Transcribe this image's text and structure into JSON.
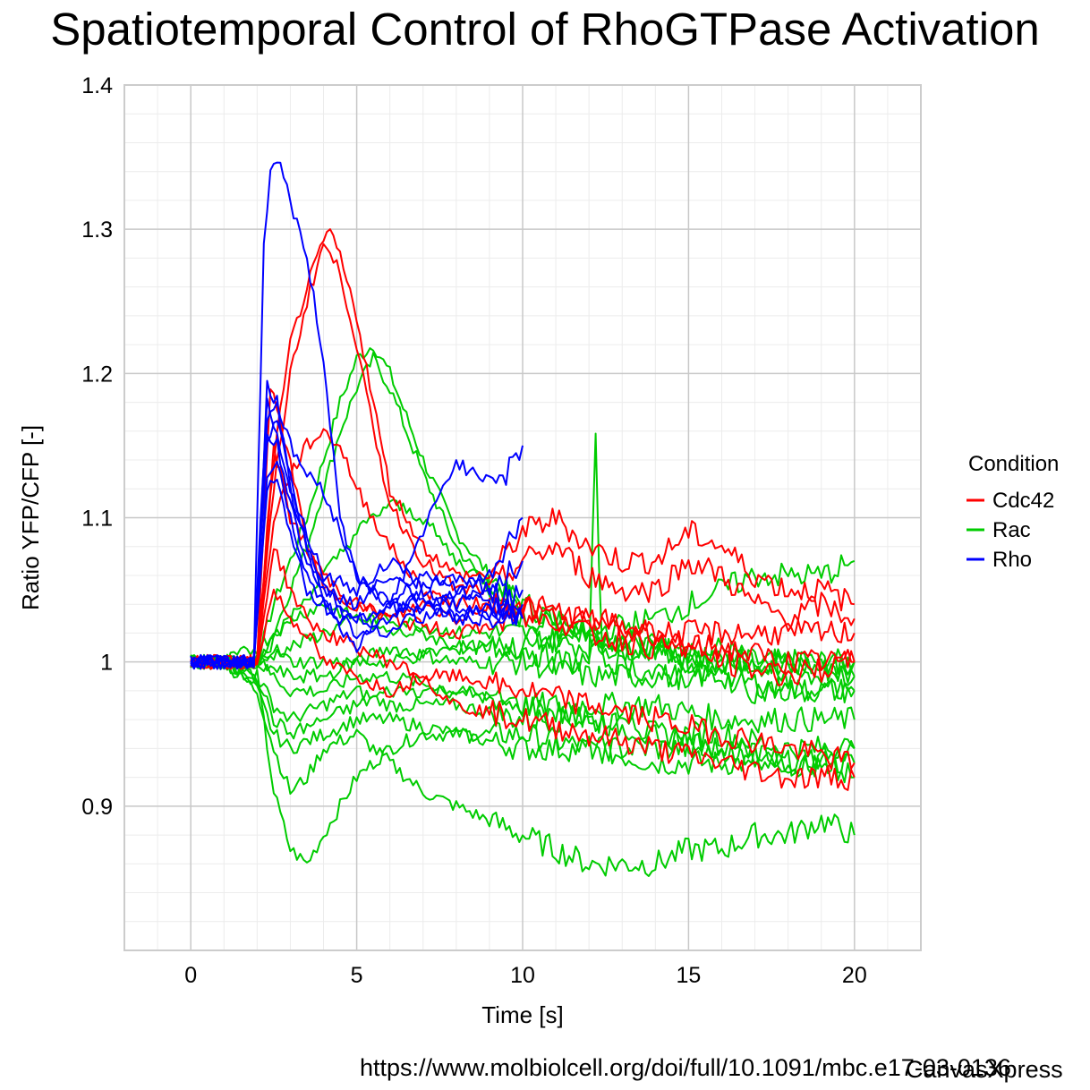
{
  "chart_data": {
    "type": "line",
    "title": "Spatiotemporal Control of RhoGTPase Activation",
    "xlabel": "Time [s]",
    "ylabel": "Ratio YFP/CFP [-]",
    "xlim": [
      -2,
      22
    ],
    "ylim": [
      0.8,
      1.4
    ],
    "x_ticks": [
      0,
      5,
      10,
      15,
      20
    ],
    "x_tick_labels": [
      "0",
      "5",
      "10",
      "15",
      "20"
    ],
    "y_ticks": [
      0.9,
      1.0,
      1.1,
      1.2,
      1.3,
      1.4
    ],
    "y_tick_labels": [
      "0.9",
      "1",
      "1.1",
      "1.2",
      "1.3",
      "1.4"
    ],
    "grid": true,
    "legend": {
      "title": "Condition",
      "placement": "right",
      "entries": [
        {
          "label": "Cdc42",
          "color": "#ff0000"
        },
        {
          "label": "Rac",
          "color": "#00cc00"
        },
        {
          "label": "Rho",
          "color": "#0000ff"
        }
      ]
    },
    "series": [
      {
        "group": "Rho",
        "color": "#0000ff",
        "x": [
          0,
          1,
          1.9,
          2.2,
          2.4,
          2.6,
          3,
          3.5,
          4,
          4.5,
          5,
          5.5,
          6,
          7,
          8,
          9,
          10
        ],
        "y": [
          1.0,
          1.0,
          1.0,
          1.29,
          1.34,
          1.35,
          1.32,
          1.28,
          1.21,
          1.1,
          1.06,
          1.05,
          1.04,
          1.04,
          1.03,
          1.04,
          1.03
        ]
      },
      {
        "group": "Rho",
        "color": "#0000ff",
        "x": [
          0,
          1,
          1.9,
          2.3,
          2.6,
          3,
          3.5,
          4,
          5,
          6,
          7,
          8,
          8.5,
          9,
          9.5,
          10
        ],
        "y": [
          1.0,
          1.0,
          1.0,
          1.17,
          1.18,
          1.15,
          1.13,
          1.12,
          1.06,
          1.04,
          1.09,
          1.14,
          1.13,
          1.13,
          1.13,
          1.15
        ]
      },
      {
        "group": "Rho",
        "color": "#0000ff",
        "x": [
          0,
          1,
          1.9,
          2.3,
          2.6,
          3,
          3.5,
          4,
          5,
          6,
          7,
          8,
          9,
          10
        ],
        "y": [
          1.0,
          1.0,
          1.0,
          1.19,
          1.18,
          1.12,
          1.08,
          1.05,
          1.03,
          1.04,
          1.06,
          1.05,
          1.06,
          1.1
        ]
      },
      {
        "group": "Rho",
        "color": "#0000ff",
        "x": [
          0,
          1,
          1.9,
          2.3,
          2.6,
          3,
          3.5,
          4,
          5,
          6,
          7,
          8,
          9,
          10
        ],
        "y": [
          1.0,
          1.0,
          1.0,
          1.15,
          1.17,
          1.13,
          1.08,
          1.04,
          1.02,
          1.03,
          1.05,
          1.04,
          1.03,
          1.05
        ]
      },
      {
        "group": "Rho",
        "color": "#0000ff",
        "x": [
          0,
          1,
          1.9,
          2.3,
          2.6,
          3,
          3.5,
          4,
          5,
          6,
          7,
          8,
          9,
          10
        ],
        "y": [
          1.0,
          1.0,
          1.0,
          1.13,
          1.14,
          1.1,
          1.06,
          1.04,
          1.01,
          1.04,
          1.03,
          1.05,
          1.04,
          1.03
        ]
      },
      {
        "group": "Rho",
        "color": "#0000ff",
        "x": [
          0,
          1,
          1.9,
          2.3,
          2.6,
          3,
          3.5,
          4,
          5,
          6,
          7,
          8,
          9,
          10
        ],
        "y": [
          1.0,
          1.0,
          1.0,
          1.16,
          1.15,
          1.11,
          1.07,
          1.05,
          1.04,
          1.06,
          1.04,
          1.04,
          1.05,
          1.04
        ]
      },
      {
        "group": "Rho",
        "color": "#0000ff",
        "x": [
          0,
          1,
          1.9,
          2.3,
          2.6,
          3,
          3.5,
          4,
          5,
          6,
          7,
          8,
          9,
          10
        ],
        "y": [
          1.0,
          1.0,
          1.0,
          1.12,
          1.13,
          1.09,
          1.05,
          1.04,
          1.03,
          1.02,
          1.04,
          1.03,
          1.03,
          1.03
        ]
      },
      {
        "group": "Rho",
        "color": "#0000ff",
        "x": [
          0,
          1,
          1.9,
          2.3,
          2.6,
          3,
          3.5,
          4,
          5,
          6,
          7,
          8,
          9,
          10
        ],
        "y": [
          1.0,
          1.0,
          1.0,
          1.18,
          1.16,
          1.12,
          1.09,
          1.06,
          1.05,
          1.07,
          1.05,
          1.06,
          1.05,
          1.07
        ]
      },
      {
        "group": "Cdc42",
        "color": "#ff0000",
        "x": [
          0,
          1,
          2,
          2.5,
          3,
          3.5,
          4,
          4.2,
          4.5,
          5,
          5.5,
          6,
          7,
          8,
          9,
          10,
          11,
          12,
          13,
          14,
          15,
          16,
          17,
          18,
          19,
          20
        ],
        "y": [
          1.0,
          1.0,
          1.0,
          1.14,
          1.22,
          1.26,
          1.29,
          1.3,
          1.28,
          1.24,
          1.18,
          1.12,
          1.08,
          1.06,
          1.06,
          1.09,
          1.1,
          1.08,
          1.07,
          1.07,
          1.09,
          1.08,
          1.06,
          1.05,
          1.05,
          1.04
        ]
      },
      {
        "group": "Cdc42",
        "color": "#ff0000",
        "x": [
          0,
          1,
          2,
          2.5,
          3,
          3.5,
          4,
          4.5,
          5,
          5.5,
          6,
          7,
          8,
          9,
          10,
          11,
          12,
          13,
          14,
          15,
          16,
          17,
          18,
          19,
          20
        ],
        "y": [
          1.0,
          1.0,
          1.0,
          1.12,
          1.2,
          1.25,
          1.29,
          1.27,
          1.22,
          1.16,
          1.11,
          1.07,
          1.05,
          1.05,
          1.07,
          1.08,
          1.06,
          1.05,
          1.05,
          1.07,
          1.06,
          1.04,
          1.03,
          1.04,
          1.03
        ]
      },
      {
        "group": "Cdc42",
        "color": "#ff0000",
        "x": [
          0,
          1,
          2,
          2.5,
          3,
          3.5,
          4,
          4.5,
          5,
          6,
          7,
          8,
          9,
          10,
          12,
          14,
          16,
          18,
          20
        ],
        "y": [
          1.0,
          1.0,
          1.0,
          1.1,
          1.13,
          1.15,
          1.16,
          1.15,
          1.12,
          1.08,
          1.05,
          1.04,
          1.04,
          1.04,
          1.03,
          1.02,
          1.02,
          1.02,
          1.02
        ]
      },
      {
        "group": "Cdc42",
        "color": "#ff0000",
        "x": [
          0,
          1,
          2,
          2.4,
          3,
          3.5,
          4,
          5,
          6,
          7,
          8,
          9,
          10,
          12,
          14,
          16,
          18,
          20
        ],
        "y": [
          1.0,
          1.0,
          1.0,
          1.19,
          1.14,
          1.08,
          1.05,
          1.04,
          1.03,
          1.04,
          1.03,
          1.04,
          1.04,
          1.02,
          1.01,
          1.01,
          1.0,
          1.0
        ]
      },
      {
        "group": "Cdc42",
        "color": "#ff0000",
        "x": [
          0,
          1,
          2,
          2.5,
          3,
          3.5,
          4,
          5,
          6,
          7,
          8,
          10,
          12,
          14,
          16,
          18,
          20
        ],
        "y": [
          1.0,
          1.0,
          1.0,
          1.08,
          1.05,
          1.03,
          1.02,
          1.01,
          1.0,
          0.99,
          0.99,
          0.98,
          0.97,
          0.96,
          0.95,
          0.94,
          0.93
        ]
      },
      {
        "group": "Cdc42",
        "color": "#ff0000",
        "x": [
          0,
          1,
          2,
          2.5,
          3,
          3.5,
          4,
          5,
          6,
          7,
          8,
          10,
          12,
          14,
          16,
          18,
          20
        ],
        "y": [
          1.0,
          1.0,
          1.0,
          1.05,
          1.03,
          1.02,
          1.0,
          0.99,
          0.98,
          0.99,
          0.97,
          0.96,
          0.95,
          0.94,
          0.93,
          0.92,
          0.92
        ]
      },
      {
        "group": "Cdc42",
        "color": "#ff0000",
        "x": [
          0,
          1,
          2,
          2.5,
          3,
          4,
          5,
          6,
          8,
          10,
          12,
          14,
          16,
          18,
          20
        ],
        "y": [
          1.0,
          1.0,
          1.0,
          1.15,
          1.1,
          1.06,
          1.04,
          1.03,
          1.02,
          1.03,
          1.03,
          1.02,
          1.0,
          0.99,
          1.0
        ]
      },
      {
        "group": "Rac",
        "color": "#00cc00",
        "x": [
          0,
          1,
          2,
          2.5,
          3,
          3.5,
          4,
          4.5,
          5,
          5.5,
          6,
          7,
          8,
          9,
          10,
          11,
          12,
          13,
          14,
          15,
          16,
          17,
          18,
          19,
          20
        ],
        "y": [
          1.0,
          1.0,
          1.0,
          1.04,
          1.07,
          1.1,
          1.14,
          1.18,
          1.21,
          1.22,
          1.2,
          1.14,
          1.09,
          1.06,
          1.04,
          1.03,
          1.02,
          1.01,
          1.01,
          1.0,
          1.01,
          1.0,
          1.0,
          1.0,
          1.0
        ]
      },
      {
        "group": "Rac",
        "color": "#00cc00",
        "x": [
          0,
          1,
          2,
          2.5,
          3,
          3.5,
          4,
          4.5,
          5,
          5.5,
          6,
          7,
          8,
          9,
          10,
          12,
          14,
          16,
          18,
          20
        ],
        "y": [
          1.0,
          1.0,
          1.0,
          1.02,
          1.05,
          1.08,
          1.12,
          1.16,
          1.19,
          1.21,
          1.19,
          1.13,
          1.08,
          1.05,
          1.03,
          1.02,
          1.01,
          1.0,
          1.0,
          0.99
        ]
      },
      {
        "group": "Rac",
        "color": "#00cc00",
        "x": [
          0,
          1,
          2,
          2.5,
          3,
          3.5,
          4,
          5,
          6,
          7,
          8,
          10,
          12,
          14,
          16,
          18,
          20
        ],
        "y": [
          1.0,
          1.0,
          0.99,
          0.91,
          0.87,
          0.86,
          0.88,
          0.92,
          0.94,
          0.95,
          0.95,
          0.95,
          0.94,
          0.93,
          0.93,
          0.93,
          0.93
        ]
      },
      {
        "group": "Rac",
        "color": "#00cc00",
        "x": [
          0,
          1,
          2,
          2.5,
          3,
          3.5,
          4,
          5,
          6,
          7,
          8,
          9,
          10,
          11,
          12,
          13,
          14,
          15,
          16,
          17,
          18,
          19,
          20
        ],
        "y": [
          1.0,
          1.0,
          0.98,
          0.94,
          0.91,
          0.92,
          0.94,
          0.95,
          0.93,
          0.91,
          0.9,
          0.89,
          0.88,
          0.87,
          0.86,
          0.86,
          0.86,
          0.87,
          0.87,
          0.88,
          0.88,
          0.89,
          0.88
        ]
      },
      {
        "group": "Rac",
        "color": "#00cc00",
        "x": [
          0,
          1,
          2,
          2.5,
          3,
          4,
          5,
          6,
          8,
          10,
          12,
          14,
          16,
          18,
          20
        ],
        "y": [
          1.0,
          1.0,
          0.98,
          0.95,
          0.94,
          0.95,
          0.96,
          0.96,
          0.95,
          0.94,
          0.94,
          0.94,
          0.94,
          0.93,
          0.92
        ]
      },
      {
        "group": "Rac",
        "color": "#00cc00",
        "x": [
          0,
          1,
          2,
          2.5,
          3,
          4,
          5,
          6,
          8,
          10,
          12,
          14,
          16,
          18,
          20
        ],
        "y": [
          1.0,
          1.0,
          0.99,
          0.97,
          0.96,
          0.97,
          0.98,
          0.97,
          0.97,
          0.96,
          0.96,
          0.95,
          0.95,
          0.94,
          0.94
        ]
      },
      {
        "group": "Rac",
        "color": "#00cc00",
        "x": [
          0,
          1,
          2,
          2.5,
          3,
          4,
          5,
          6,
          8,
          10,
          12,
          14,
          16,
          18,
          20
        ],
        "y": [
          1.0,
          1.0,
          1.0,
          0.99,
          0.98,
          0.98,
          0.99,
          0.99,
          0.98,
          0.97,
          0.97,
          0.97,
          0.96,
          0.96,
          0.96
        ]
      },
      {
        "group": "Rac",
        "color": "#00cc00",
        "x": [
          0,
          1,
          2,
          2.5,
          3,
          4,
          5,
          6,
          8,
          10,
          12,
          14,
          16,
          18,
          20
        ],
        "y": [
          1.0,
          1.0,
          1.0,
          1.01,
          1.0,
          1.0,
          1.0,
          1.01,
          1.0,
          1.0,
          0.99,
          0.99,
          0.99,
          0.98,
          0.98
        ]
      },
      {
        "group": "Rac",
        "color": "#00cc00",
        "x": [
          0,
          1,
          2,
          2.5,
          3,
          4,
          5,
          6,
          8,
          10,
          12,
          14,
          16,
          18,
          20
        ],
        "y": [
          1.0,
          1.0,
          1.01,
          1.02,
          1.03,
          1.04,
          1.03,
          1.03,
          1.02,
          1.02,
          1.01,
          1.01,
          1.0,
          1.0,
          1.0
        ]
      },
      {
        "group": "Rac",
        "color": "#00cc00",
        "x": [
          0,
          1,
          2,
          3,
          4,
          5,
          6,
          7,
          8,
          9,
          10,
          11,
          12,
          12.2,
          12.4,
          13,
          14,
          15,
          16,
          17,
          18,
          19,
          20
        ],
        "y": [
          1.0,
          1.0,
          1.0,
          1.01,
          1.02,
          1.03,
          1.02,
          1.02,
          1.01,
          1.01,
          1.01,
          1.0,
          1.0,
          1.15,
          1.0,
          1.0,
          0.99,
          0.99,
          0.99,
          0.98,
          0.98,
          0.98,
          0.98
        ]
      },
      {
        "group": "Rac",
        "color": "#00cc00",
        "x": [
          0,
          1,
          2,
          3,
          4,
          5,
          6,
          8,
          10,
          12,
          14,
          16,
          17,
          18,
          19,
          20
        ],
        "y": [
          1.0,
          1.0,
          1.0,
          0.99,
          0.99,
          1.0,
          1.0,
          1.01,
          1.01,
          1.02,
          1.03,
          1.05,
          1.06,
          1.06,
          1.06,
          1.07
        ]
      },
      {
        "group": "Rac",
        "color": "#00cc00",
        "x": [
          0,
          1,
          2,
          2.5,
          3,
          4,
          5,
          6,
          8,
          10,
          12,
          14,
          16,
          18,
          20
        ],
        "y": [
          1.0,
          1.0,
          0.99,
          0.96,
          0.95,
          0.96,
          0.97,
          0.98,
          0.98,
          0.97,
          0.96,
          0.95,
          0.94,
          0.93,
          0.94
        ]
      },
      {
        "group": "Rac",
        "color": "#00cc00",
        "x": [
          0,
          1,
          2,
          3,
          4,
          5,
          6,
          7,
          8,
          10,
          12,
          14,
          16,
          18,
          20
        ],
        "y": [
          1.0,
          1.0,
          1.0,
          1.03,
          1.06,
          1.09,
          1.11,
          1.1,
          1.07,
          1.04,
          1.02,
          1.01,
          1.0,
          0.99,
          0.99
        ]
      }
    ]
  },
  "source_url": "https://www.molbiolcell.org/doi/full/10.1091/mbc.e17-03-0136",
  "watermark": "CanvasXpress"
}
